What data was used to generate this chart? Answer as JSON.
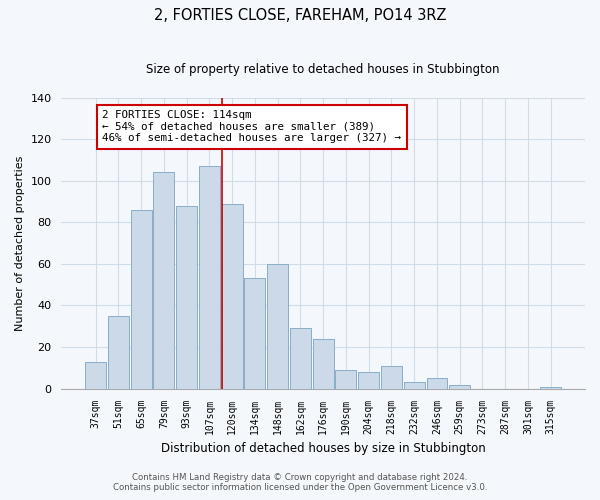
{
  "title": "2, FORTIES CLOSE, FAREHAM, PO14 3RZ",
  "subtitle": "Size of property relative to detached houses in Stubbington",
  "xlabel": "Distribution of detached houses by size in Stubbington",
  "ylabel": "Number of detached properties",
  "bar_labels": [
    "37sqm",
    "51sqm",
    "65sqm",
    "79sqm",
    "93sqm",
    "107sqm",
    "120sqm",
    "134sqm",
    "148sqm",
    "162sqm",
    "176sqm",
    "190sqm",
    "204sqm",
    "218sqm",
    "232sqm",
    "246sqm",
    "259sqm",
    "273sqm",
    "287sqm",
    "301sqm",
    "315sqm"
  ],
  "bar_values": [
    13,
    35,
    86,
    104,
    88,
    107,
    89,
    53,
    60,
    29,
    24,
    9,
    8,
    11,
    3,
    5,
    2,
    0,
    0,
    0,
    1
  ],
  "bar_color": "#ccd9e8",
  "bar_edge_color": "#8aaec8",
  "highlight_index": 6,
  "highlight_line_color": "#cc0000",
  "ylim": [
    0,
    140
  ],
  "annotation_title": "2 FORTIES CLOSE: 114sqm",
  "annotation_line1": "← 54% of detached houses are smaller (389)",
  "annotation_line2": "46% of semi-detached houses are larger (327) →",
  "annotation_box_color": "#ffffff",
  "annotation_box_edge_color": "#cc0000",
  "footer1": "Contains HM Land Registry data © Crown copyright and database right 2024.",
  "footer2": "Contains public sector information licensed under the Open Government Licence v3.0.",
  "background_color": "#f4f7fb",
  "grid_color": "#d0dce8",
  "title_fontsize": 10.5,
  "subtitle_fontsize": 8.5
}
